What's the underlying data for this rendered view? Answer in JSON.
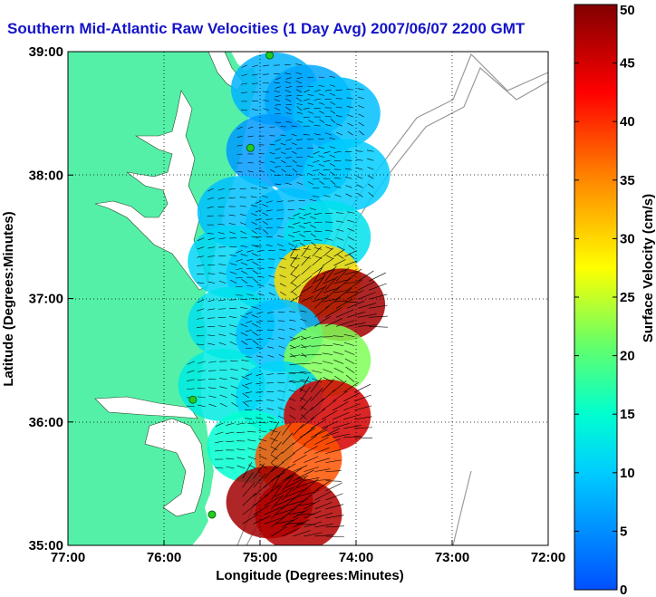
{
  "title": "Southern Mid-Atlantic Raw Velocities (1 Day Avg) 2007/06/07 2200 GMT",
  "map": {
    "xlabel": "Longitude (Degrees:Minutes)",
    "ylabel": "Latitude (Degrees:Minutes)",
    "xticks": [
      "77:00",
      "76:00",
      "75:00",
      "74:00",
      "73:00",
      "72:00"
    ],
    "yticks": [
      "35:00",
      "36:00",
      "37:00",
      "38:00",
      "39:00"
    ],
    "lon_range": [
      -77,
      -72
    ],
    "lat_range": [
      35,
      39
    ],
    "grid": true,
    "land_color": "#55f0a8",
    "ocean_color": "#ffffff"
  },
  "colorbar": {
    "label": "Surface Velocity (cm/s)",
    "ticks": [
      "0",
      "5",
      "10",
      "15",
      "20",
      "25",
      "30",
      "35",
      "40",
      "45",
      "50"
    ],
    "range": [
      0,
      50
    ],
    "colors": [
      "#0000ff",
      "#00ffff",
      "#ffff00",
      "#ff0000",
      "#800000"
    ]
  },
  "stations": [
    {
      "lon": -74.9,
      "lat": 38.97
    },
    {
      "lon": -75.1,
      "lat": 38.22
    },
    {
      "lon": -75.7,
      "lat": 36.18
    },
    {
      "lon": -75.5,
      "lat": 35.25
    }
  ],
  "velocity_field": [
    {
      "lon": -74.85,
      "lat": 38.7,
      "speed": 8
    },
    {
      "lon": -74.5,
      "lat": 38.6,
      "speed": 7
    },
    {
      "lon": -74.2,
      "lat": 38.5,
      "speed": 9
    },
    {
      "lon": -74.9,
      "lat": 38.2,
      "speed": 6
    },
    {
      "lon": -74.5,
      "lat": 38.1,
      "speed": 8
    },
    {
      "lon": -74.1,
      "lat": 38.0,
      "speed": 10
    },
    {
      "lon": -75.2,
      "lat": 37.7,
      "speed": 9
    },
    {
      "lon": -74.7,
      "lat": 37.6,
      "speed": 9
    },
    {
      "lon": -74.3,
      "lat": 37.5,
      "speed": 12
    },
    {
      "lon": -75.3,
      "lat": 37.3,
      "speed": 11
    },
    {
      "lon": -74.9,
      "lat": 37.2,
      "speed": 10
    },
    {
      "lon": -74.4,
      "lat": 37.15,
      "speed": 30
    },
    {
      "lon": -74.15,
      "lat": 36.95,
      "speed": 48
    },
    {
      "lon": -75.3,
      "lat": 36.8,
      "speed": 12
    },
    {
      "lon": -74.8,
      "lat": 36.7,
      "speed": 9
    },
    {
      "lon": -74.3,
      "lat": 36.5,
      "speed": 22
    },
    {
      "lon": -75.4,
      "lat": 36.3,
      "speed": 13
    },
    {
      "lon": -74.8,
      "lat": 36.2,
      "speed": 11
    },
    {
      "lon": -74.3,
      "lat": 36.05,
      "speed": 45
    },
    {
      "lon": -75.1,
      "lat": 35.8,
      "speed": 15
    },
    {
      "lon": -74.6,
      "lat": 35.7,
      "speed": 38
    },
    {
      "lon": -74.9,
      "lat": 35.35,
      "speed": 48
    },
    {
      "lon": -74.6,
      "lat": 35.25,
      "speed": 47
    }
  ]
}
